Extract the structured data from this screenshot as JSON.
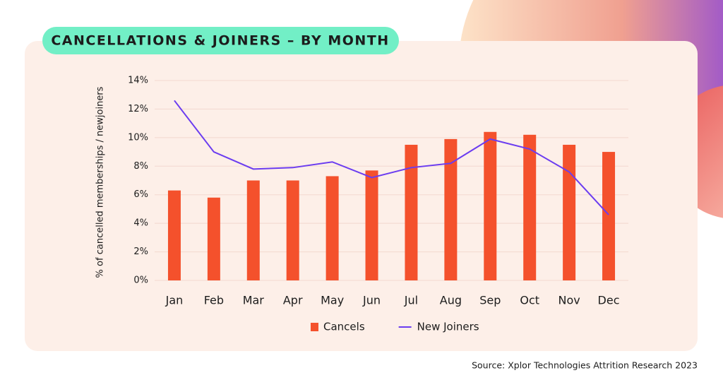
{
  "chart_data": {
    "type": "bar_line",
    "title": "CANCELLATIONS & JOINERS – BY MONTH",
    "y_label": "% of cancelled memberships / newjoiners",
    "source": "Source: Xplor Technologies Attrition Research 2023",
    "categories": [
      "Jan",
      "Feb",
      "Mar",
      "Apr",
      "May",
      "Jun",
      "Jul",
      "Aug",
      "Sep",
      "Oct",
      "Nov",
      "Dec"
    ],
    "series": [
      {
        "name": "Cancels",
        "type": "bar",
        "color": "#f4512c",
        "values": [
          6.3,
          5.8,
          7.0,
          7.0,
          7.3,
          7.7,
          9.5,
          9.9,
          10.4,
          10.2,
          9.5,
          9.0
        ]
      },
      {
        "name": "New Joiners",
        "type": "line",
        "color": "#6b3cf0",
        "values": [
          12.6,
          9.0,
          7.8,
          7.9,
          8.3,
          7.2,
          7.9,
          8.2,
          9.9,
          9.2,
          7.6,
          4.6
        ]
      }
    ],
    "ylim": [
      0,
      14
    ],
    "yticks": [
      {
        "value": 0,
        "label": "0%"
      },
      {
        "value": 2,
        "label": "2%"
      },
      {
        "value": 4,
        "label": "4%"
      },
      {
        "value": 6,
        "label": "6%"
      },
      {
        "value": 8,
        "label": "8%"
      },
      {
        "value": 10,
        "label": "10%"
      },
      {
        "value": 12,
        "label": "12%"
      },
      {
        "value": 14,
        "label": "14%"
      }
    ],
    "grid": true,
    "legend": "bottom"
  }
}
